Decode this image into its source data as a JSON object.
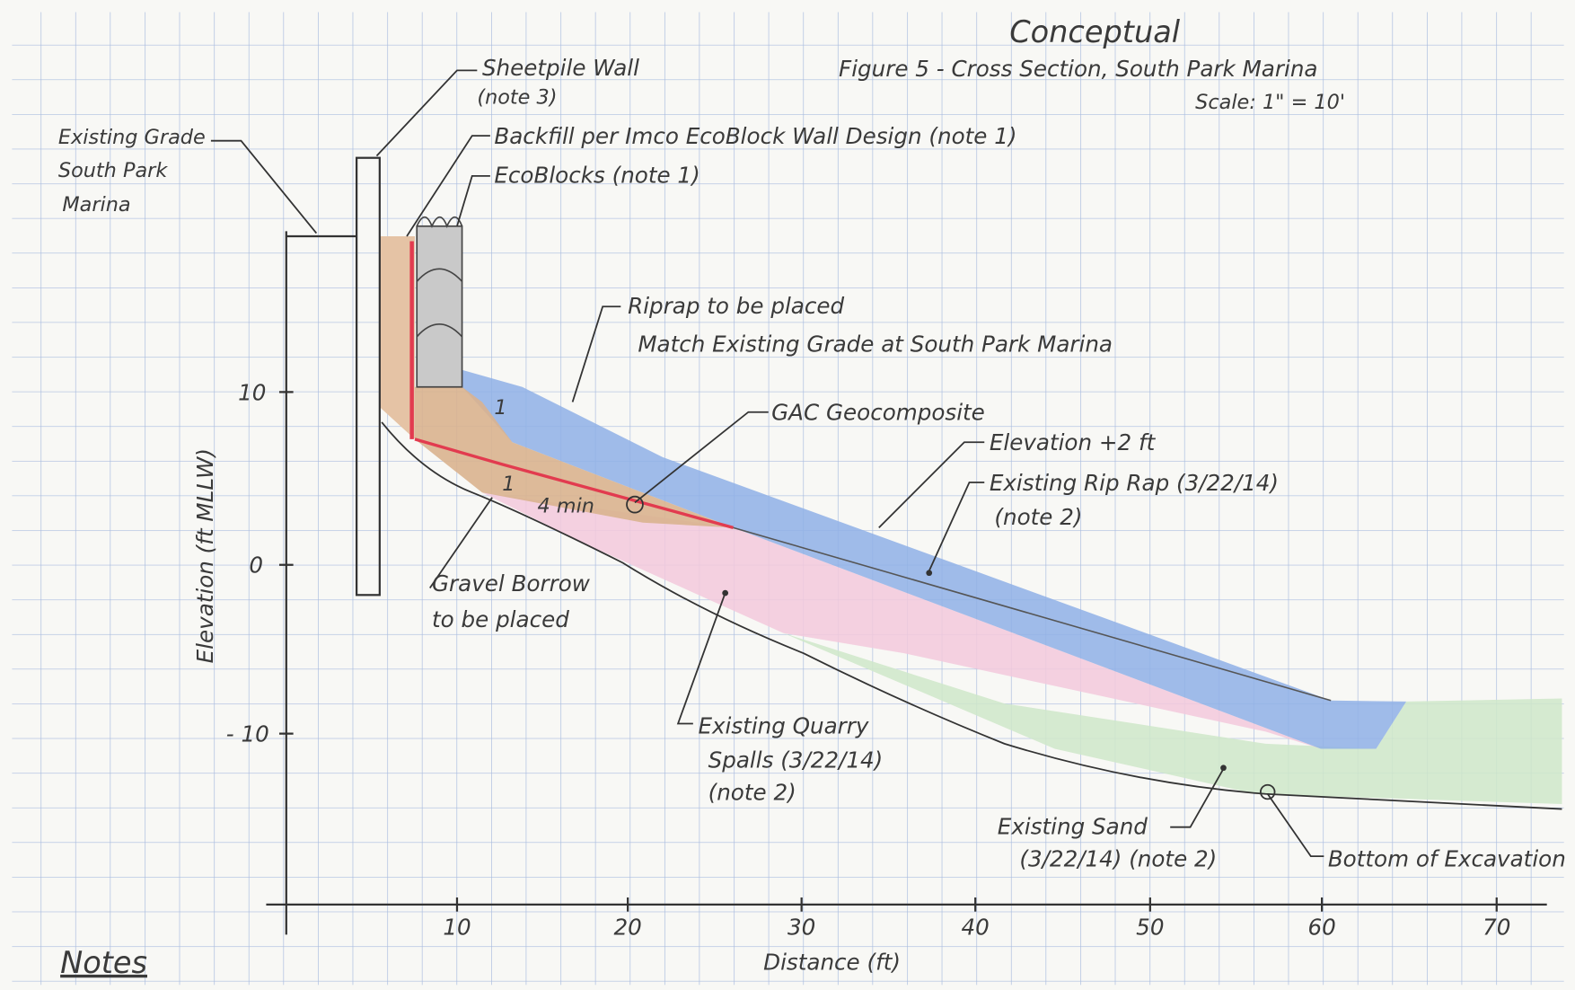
{
  "header": {
    "stamp": "Conceptual",
    "title": "Figure 5 - Cross Section, South Park Marina",
    "scale": "Scale: 1\" = 10'"
  },
  "axes": {
    "x_label": "Distance (ft)",
    "y_label": "Elevation (ft MLLW)",
    "x_ticks": [
      "10",
      "20",
      "30",
      "40",
      "50",
      "60",
      "70"
    ],
    "y_ticks": [
      "10",
      "0",
      "- 10"
    ]
  },
  "annotations": {
    "sheetpile": [
      "Sheetpile Wall",
      "(note 3)"
    ],
    "existing_grade": [
      "Existing Grade",
      "South Park",
      "Marina"
    ],
    "backfill": [
      "Backfill per Imco EcoBlock Wall Design (note 1)"
    ],
    "ecoblocks": [
      "EcoBlocks (note 1)"
    ],
    "riprap_placed": [
      "Riprap to be placed",
      "Match Existing Grade at South Park Marina"
    ],
    "gac": [
      "GAC Geocomposite"
    ],
    "elevation": [
      "Elevation +2 ft"
    ],
    "existing_riprap": [
      "Existing Rip Rap (3/22/14)",
      "(note 2)"
    ],
    "gravel": [
      "Gravel Borrow",
      "to be placed"
    ],
    "quarry": [
      "Existing Quarry",
      "Spalls (3/22/14)",
      "(note 2)"
    ],
    "sand": [
      "Existing Sand",
      "(3/22/14) (note 2)"
    ],
    "bottom": [
      "Bottom of Excavation"
    ],
    "min": [
      "4 min"
    ],
    "slope": [
      "1",
      "1"
    ]
  },
  "notes": "Notes"
}
